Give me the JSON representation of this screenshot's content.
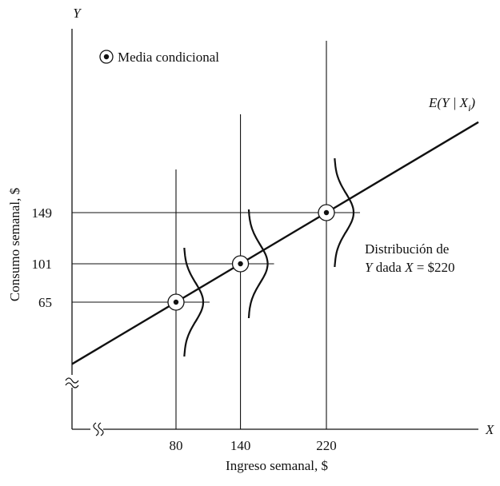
{
  "chart_data": {
    "type": "line",
    "title": "",
    "xlabel": "Ingreso semanal, $",
    "ylabel": "Consumo semanal, $",
    "x_axis_letter": "X",
    "y_axis_letter": "Y",
    "x_ticks": [
      "80",
      "140",
      "220"
    ],
    "y_ticks": [
      "65",
      "101",
      "149"
    ],
    "series": [
      {
        "name": "E(Y | Xi)",
        "x": [
          80,
          140,
          220
        ],
        "y": [
          65,
          101,
          149
        ]
      }
    ],
    "conditional_means": [
      {
        "x": 80,
        "y": 65
      },
      {
        "x": 140,
        "y": 101
      },
      {
        "x": 220,
        "y": 149
      }
    ],
    "legend": {
      "marker": "circled-dot",
      "label": "Media condicional",
      "placement": "top-left"
    },
    "regression_label": {
      "prefix": "E(Y | X",
      "subscript": "i",
      "suffix": ")"
    },
    "annotation": {
      "line1": "Distribución de",
      "line2_y": "Y",
      "line2_mid": " dada ",
      "line2_x": "X",
      "line2_rest": " = $220"
    },
    "axis_breaks": true,
    "grid": false,
    "color": "#111111"
  }
}
